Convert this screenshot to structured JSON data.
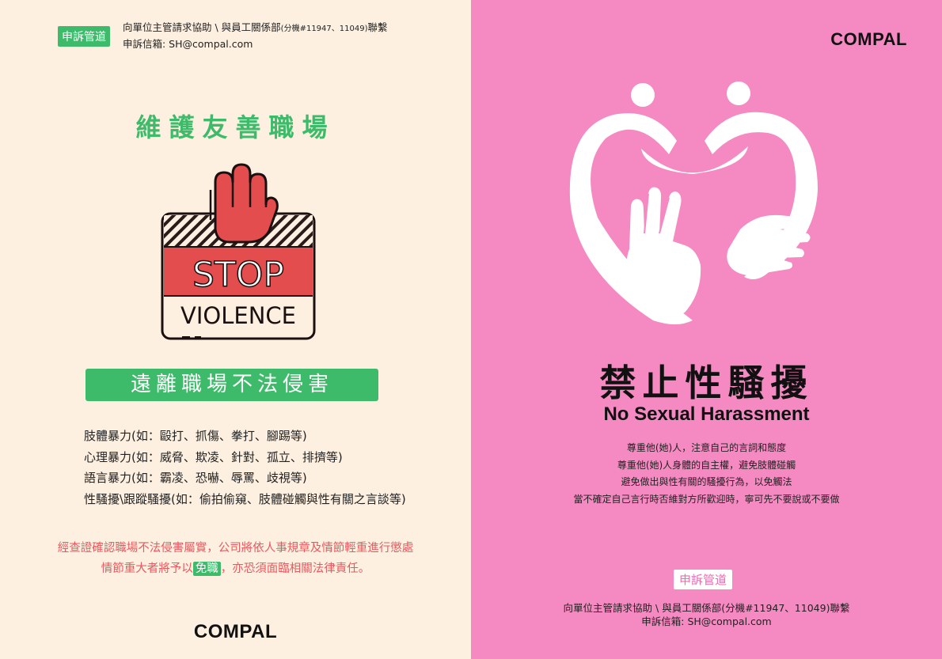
{
  "left": {
    "tag": "申訴管道",
    "contact_line1": "向單位主管請求協助 \\ 與員工關係部",
    "contact_ext": "(分機#11947、11049)",
    "contact_line1_end": "聯繫",
    "contact_line2": "申訴信箱:  SH@compal.com",
    "title": "維護友善職場",
    "stop_text": "STOP",
    "violence_text": "VIOLENCE",
    "banner": "遠離職場不法侵害",
    "violence_list": [
      "肢體暴力(如：毆打、抓傷、拳打、腳踢等)",
      "心理暴力(如：威脅、欺凌、針對、孤立、排擠等)",
      "語言暴力(如：霸凌、恐嚇、辱罵、歧視等)",
      "性騷擾\\跟蹤騷擾(如：偷拍偷窺、肢體碰觸與性有關之言談等)"
    ],
    "warning_line1": "經查證確認職場不法侵害屬實，公司將依人事規章及情節輕重進行懲處",
    "warning_line2_pre": "情節重大者將予以",
    "warning_highlight": "免職",
    "warning_line2_post": "，亦恐須面臨相關法律責任。",
    "logo": "COMPAL"
  },
  "right": {
    "logo": "COMPAL",
    "title": "禁止性騷擾",
    "subtitle": "No Sexual Harassment",
    "rules": [
      "尊重他(她)人，注意自己的言詞和態度",
      "尊重他(她)人身體的自主權，避免肢體碰觸",
      "避免做出與性有關的騷擾行為，以免觸法",
      "當不確定自己言行時否維對方所歡迎時，寧可先不要說或不要做"
    ],
    "tag": "申訴管道",
    "contact_line1": "向單位主管請求協助 \\ 與員工關係部(分機#11947、11049)聯繫",
    "contact_line2": "申訴信箱:  SH@compal.com"
  },
  "colors": {
    "left_bg": "#fdf0e1",
    "right_bg": "#f48ac1",
    "green": "#3dbb6a",
    "red": "#e8585e",
    "stop_red": "#e34d4d"
  }
}
